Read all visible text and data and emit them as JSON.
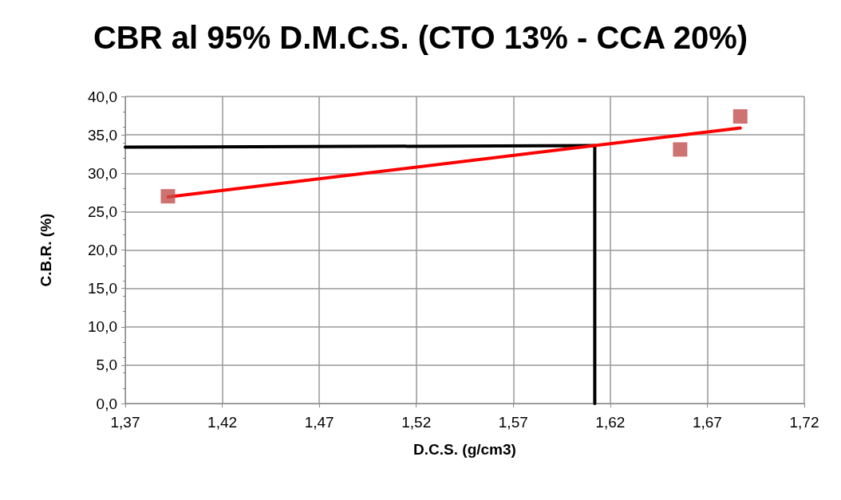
{
  "chart_data": {
    "type": "scatter",
    "title": "CBR al 95% D.M.C.S. (CTO 13% - CCA 20%)",
    "xlabel": "D.C.S. (g/cm3)",
    "ylabel": "C.B.R. (%)",
    "xlim": [
      1.37,
      1.72
    ],
    "xticks": [
      {
        "value": 1.37,
        "label": "1,37"
      },
      {
        "value": 1.42,
        "label": "1,42"
      },
      {
        "value": 1.47,
        "label": "1,47"
      },
      {
        "value": 1.52,
        "label": "1,52"
      },
      {
        "value": 1.57,
        "label": "1,57"
      },
      {
        "value": 1.62,
        "label": "1,62"
      },
      {
        "value": 1.67,
        "label": "1,67"
      },
      {
        "value": 1.72,
        "label": "1,72"
      }
    ],
    "ylim": [
      0,
      40
    ],
    "yticks": [
      {
        "value": 0,
        "label": "0,0"
      },
      {
        "value": 5,
        "label": "5,0"
      },
      {
        "value": 10,
        "label": "10,0"
      },
      {
        "value": 15,
        "label": "15,0"
      },
      {
        "value": 20,
        "label": "20,0"
      },
      {
        "value": 25,
        "label": "25,0"
      },
      {
        "value": 30,
        "label": "30,0"
      },
      {
        "value": 35,
        "label": "35,0"
      },
      {
        "value": 40,
        "label": "40,0"
      }
    ],
    "grid": true,
    "series": [
      {
        "type": "line",
        "color": "#000000",
        "marker": "none",
        "x": [
          1.37,
          1.612,
          1.612
        ],
        "values": [
          33.4,
          33.6,
          0
        ]
      },
      {
        "type": "line",
        "color": "#ff0000",
        "marker": "none",
        "x": [
          1.392,
          1.687
        ],
        "values": [
          26.9,
          35.9
        ]
      },
      {
        "type": "scatter",
        "color": "#c0504d",
        "marker": "square",
        "x": [
          1.392,
          1.656,
          1.687
        ],
        "values": [
          27.0,
          33.1,
          37.4
        ]
      }
    ]
  }
}
